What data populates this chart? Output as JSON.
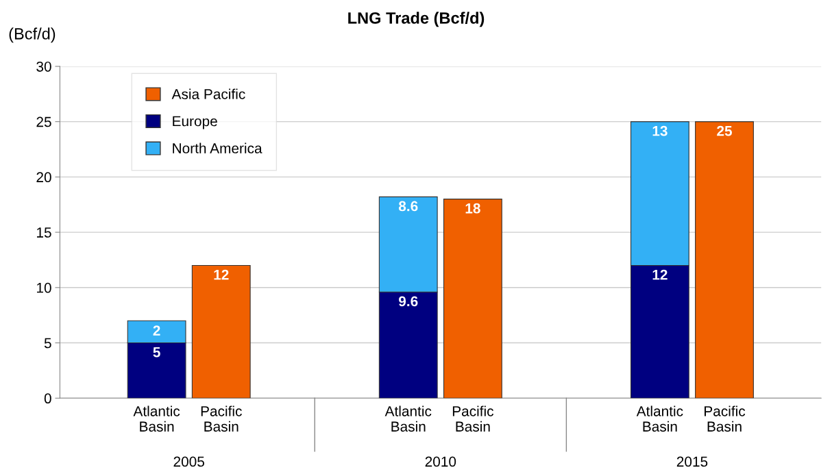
{
  "chart_data": {
    "type": "bar",
    "title": "LNG Trade (Bcf/d)",
    "ylabel": "(Bcf/d)",
    "categories": [
      "Atlantic\nBasin",
      "Pacific\nBasin",
      "Atlantic\nBasin",
      "Pacific\nBasin",
      "Atlantic\nBasin",
      "Pacific\nBasin"
    ],
    "series": [
      {
        "name": "Asia Pacific",
        "color": "#f06000",
        "values": [
          null,
          12,
          null,
          18,
          null,
          25
        ]
      },
      {
        "name": "Europe",
        "color": "#000080",
        "values": [
          5,
          null,
          9.6,
          null,
          12,
          null
        ]
      },
      {
        "name": "North America",
        "color": "#33b0f5",
        "values": [
          2,
          null,
          8.6,
          null,
          13,
          null
        ]
      }
    ],
    "stacked": true,
    "data_labels": true,
    "ylim": [
      0,
      30
    ],
    "yticks": [
      0,
      5,
      10,
      15,
      20,
      25,
      30
    ],
    "grid": "y",
    "legend": "top left",
    "annotations": [
      "2005",
      "2010",
      "2015"
    ]
  }
}
